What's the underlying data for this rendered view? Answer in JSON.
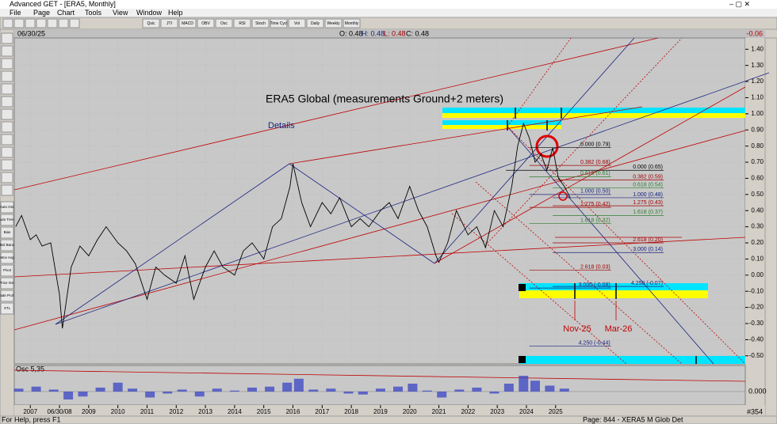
{
  "window": {
    "title": "Advanced GET - [ERA5, Monthly]"
  },
  "menu": [
    "File",
    "Page",
    "Chart",
    "Tools",
    "View",
    "Window",
    "Help"
  ],
  "toolbar": [
    "Qsic",
    "JTI",
    "MACD",
    "OBV",
    "Osc",
    "RSI",
    "Stoch",
    "Time Cycl",
    "Vol",
    "Daily",
    "Weekly",
    "Monthly"
  ],
  "side_toolbar": [
    "Auto Osc",
    "Auto Trend",
    "Bias",
    "Bol Band",
    "Mov Avg",
    "Pivot",
    "Price Osc",
    "Trade Profile",
    "XTL"
  ],
  "header": {
    "date": "06/30/25",
    "open": "O: 0.48",
    "high": "H: 0.48",
    "low": "L: 0.48",
    "close": "C: 0.48",
    "change": "-0.06"
  },
  "chart": {
    "title": "ERA5 Global (measurements Ground+2 meters)",
    "link": "Details",
    "ylim": [
      -0.55,
      1.47
    ],
    "yticks": [
      {
        "value": 1.4,
        "label": "1.40"
      },
      {
        "value": 1.3,
        "label": "1.30"
      },
      {
        "value": 1.2,
        "label": "1.20"
      },
      {
        "value": 1.1,
        "label": "1.10"
      },
      {
        "value": 1.0,
        "label": "1.00"
      },
      {
        "value": 0.9,
        "label": "0.90"
      },
      {
        "value": 0.8,
        "label": "0.80"
      },
      {
        "value": 0.7,
        "label": "0.70"
      },
      {
        "value": 0.6,
        "label": "0.60"
      },
      {
        "value": 0.5,
        "label": "0.50"
      },
      {
        "value": 0.4,
        "label": "0.40"
      },
      {
        "value": 0.3,
        "label": "0.30"
      },
      {
        "value": 0.2,
        "label": "0.20"
      },
      {
        "value": 0.1,
        "label": "0.10"
      },
      {
        "value": 0,
        "label": "0.00"
      },
      {
        "value": -0.1,
        "label": "-0.10"
      },
      {
        "value": -0.2,
        "label": "-0.20"
      },
      {
        "value": -0.3,
        "label": "-0.30"
      },
      {
        "value": -0.4,
        "label": "-0.40"
      },
      {
        "value": -0.5,
        "label": "-0.50"
      }
    ],
    "xlim": [
      2006.45,
      2031.5
    ],
    "xticks": [
      {
        "value": 2007,
        "label": "2007"
      },
      {
        "value": 2008,
        "label": "06/30/08"
      },
      {
        "value": 2009,
        "label": "2009"
      },
      {
        "value": 2010,
        "label": "2010"
      },
      {
        "value": 2011,
        "label": "2011"
      },
      {
        "value": 2012,
        "label": "2012"
      },
      {
        "value": 2013,
        "label": "2013"
      },
      {
        "value": 2014,
        "label": "2014"
      },
      {
        "value": 2015,
        "label": "2015"
      },
      {
        "value": 2016,
        "label": "2016"
      },
      {
        "value": 2017,
        "label": "2017"
      },
      {
        "value": 2018,
        "label": "2018"
      },
      {
        "value": 2019,
        "label": "2019"
      },
      {
        "value": 2020,
        "label": "2020"
      },
      {
        "value": 2021,
        "label": "2021"
      },
      {
        "value": 2022,
        "label": "2022"
      },
      {
        "value": 2023,
        "label": "2023"
      },
      {
        "value": 2024,
        "label": "2024"
      },
      {
        "value": 2025,
        "label": "2025"
      }
    ],
    "price": {
      "x": [
        2006.5,
        2006.7,
        2007.0,
        2007.2,
        2007.4,
        2007.7,
        2008.0,
        2008.1,
        2008.4,
        2008.7,
        2009.0,
        2009.3,
        2009.6,
        2010.0,
        2010.3,
        2010.6,
        2011.0,
        2011.3,
        2011.6,
        2012.0,
        2012.3,
        2012.6,
        2013.0,
        2013.3,
        2013.6,
        2014.0,
        2014.3,
        2014.6,
        2015.0,
        2015.3,
        2015.6,
        2015.9,
        2016.0,
        2016.3,
        2016.6,
        2017.0,
        2017.3,
        2017.6,
        2018.0,
        2018.3,
        2018.6,
        2019.0,
        2019.3,
        2019.6,
        2020.0,
        2020.3,
        2020.6,
        2020.9,
        2021.0,
        2021.3,
        2021.6,
        2022.0,
        2022.3,
        2022.6,
        2022.9,
        2023.2,
        2023.5,
        2023.7,
        2023.9,
        2024.1,
        2024.3,
        2024.5,
        2024.7,
        2024.9,
        2025.1,
        2025.3,
        2025.5
      ],
      "values": [
        0.3,
        0.37,
        0.22,
        0.25,
        0.18,
        0.2,
        -0.12,
        -0.33,
        0.05,
        0.18,
        0.12,
        0.22,
        0.3,
        0.2,
        0.15,
        0.07,
        -0.15,
        0.05,
        0.0,
        -0.05,
        0.12,
        -0.15,
        0.05,
        0.15,
        0.05,
        0.0,
        0.15,
        0.2,
        0.1,
        0.3,
        0.35,
        0.55,
        0.69,
        0.45,
        0.3,
        0.45,
        0.38,
        0.48,
        0.3,
        0.35,
        0.3,
        0.4,
        0.45,
        0.35,
        0.55,
        0.4,
        0.3,
        0.12,
        0.08,
        0.2,
        0.4,
        0.25,
        0.3,
        0.17,
        0.4,
        0.3,
        0.55,
        0.8,
        0.94,
        0.85,
        0.7,
        0.75,
        0.65,
        0.79,
        0.6,
        0.55,
        0.48
      ]
    },
    "fib": [
      {
        "label": "0.000 (0.79)",
        "value": 0.79,
        "x": [
          2024.1,
          2026.9
        ],
        "color": "#000000"
      },
      {
        "label": "0.382 (0.68)",
        "value": 0.68,
        "x": [
          2024.1,
          2026.9
        ],
        "color": "#a00000"
      },
      {
        "label": "0.618 (0.61)",
        "value": 0.61,
        "x": [
          2024.1,
          2026.9
        ],
        "color": "#2e7d32"
      },
      {
        "label": "1.000 (0.50)",
        "value": 0.5,
        "x": [
          2024.1,
          2026.9
        ],
        "color": "#1a237e"
      },
      {
        "label": "1.275 (0.42)",
        "value": 0.42,
        "x": [
          2024.1,
          2026.9
        ],
        "color": "#a00000"
      },
      {
        "label": "1.618 (0.32)",
        "value": 0.32,
        "x": [
          2024.1,
          2026.9
        ],
        "color": "#2e7d32"
      },
      {
        "label": "2.618 (0.03)",
        "value": 0.03,
        "x": [
          2024.1,
          2026.9
        ],
        "color": "#a00000"
      },
      {
        "label": "3.000 (-0.08)",
        "value": -0.08,
        "x": [
          2024.1,
          2026.9
        ],
        "color": "#1a237e"
      },
      {
        "label": "4.250 (-0.44)",
        "value": -0.44,
        "x": [
          2024.1,
          2026.9
        ],
        "color": "#1a237e"
      },
      {
        "label": "0.000 (0.65)",
        "value": 0.65,
        "x": [
          2023.3,
          2028.7
        ],
        "color": "#000000"
      },
      {
        "label": "0.382 (0.59)",
        "value": 0.59,
        "x": [
          2024.9,
          2028.7
        ],
        "color": "#a00000"
      },
      {
        "label": "0.618 (0.54)",
        "value": 0.54,
        "x": [
          2024.9,
          2028.7
        ],
        "color": "#2e7d32"
      },
      {
        "label": "1.000 (0.48)",
        "value": 0.48,
        "x": [
          2024.9,
          2028.7
        ],
        "color": "#1a237e"
      },
      {
        "label": "1.275 (0.43)",
        "value": 0.43,
        "x": [
          2024.9,
          2028.7
        ],
        "color": "#a00000"
      },
      {
        "label": "1.618 (0.37)",
        "value": 0.37,
        "x": [
          2024.9,
          2028.7
        ],
        "color": "#2e7d32"
      },
      {
        "label": "2.618 (0.20)",
        "value": 0.2,
        "x": [
          2024.9,
          2028.7
        ],
        "color": "#a00000"
      },
      {
        "label": "3.000 (0.14)",
        "value": 0.14,
        "x": [
          2024.9,
          2028.7
        ],
        "color": "#1a237e"
      },
      {
        "label": "4.250 (-0.07)",
        "value": -0.07,
        "x": [
          2024.9,
          2028.7
        ],
        "color": "#1a237e"
      }
    ],
    "annotations": [
      "Nov-25",
      "Mar-26"
    ]
  },
  "osc": {
    "label": "Osc 5,35",
    "axis": "0.000",
    "x": [
      2006.6,
      2007.2,
      2007.8,
      2008.3,
      2008.8,
      2009.4,
      2010.0,
      2010.5,
      2011.1,
      2011.7,
      2012.2,
      2012.8,
      2013.4,
      2014.0,
      2014.6,
      2015.2,
      2015.8,
      2016.2,
      2016.7,
      2017.3,
      2017.9,
      2018.4,
      2019.0,
      2019.6,
      2020.1,
      2020.6,
      2021.1,
      2021.7,
      2022.3,
      2022.9,
      2023.4,
      2023.9,
      2024.3,
      2024.8,
      2025.3
    ],
    "values": [
      0.3,
      0.5,
      0.2,
      -0.8,
      -0.5,
      0.4,
      0.9,
      0.3,
      -0.6,
      -0.2,
      0.2,
      -0.5,
      0.3,
      0.1,
      0.4,
      0.5,
      0.9,
      1.3,
      0.2,
      0.3,
      -0.2,
      -0.3,
      0.3,
      0.5,
      0.8,
      0.1,
      -0.6,
      0.2,
      0.4,
      -0.2,
      0.8,
      1.6,
      1.1,
      0.6,
      0.3
    ],
    "ylim": [
      -1.2,
      2.0
    ]
  },
  "status": {
    "help": "For Help, press F1",
    "page": "Page: 844 - XERA5 M Glob Det",
    "count": "#354"
  }
}
